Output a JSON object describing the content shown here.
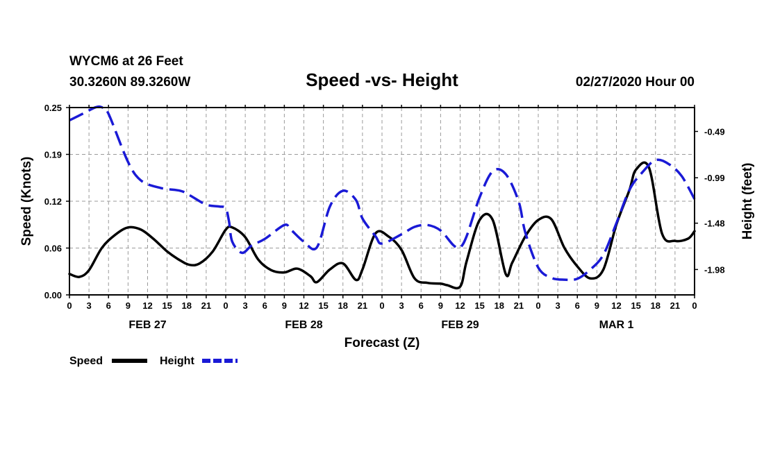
{
  "header": {
    "station": "WYCM6 at 26 Feet",
    "coords": "30.3260N 89.3260W",
    "run_time": "02/27/2020 Hour 00"
  },
  "chart_data": {
    "type": "line",
    "title": "Speed -vs- Height",
    "xlabel": "Forecast (Z)",
    "ylabel": "Speed (Knots)",
    "y2label": "Height (feet)",
    "ylim": [
      0,
      0.25
    ],
    "y2lim": [
      -2.254,
      -0.232
    ],
    "y_ticks": [
      "0.00",
      "0.06",
      "0.12",
      "0.19",
      "0.25"
    ],
    "y_tick_values": [
      0,
      0.0625,
      0.125,
      0.1875,
      0.25
    ],
    "y2_ticks": [
      "-0.49",
      "-0.99",
      "-1.48",
      "-1.98"
    ],
    "y2_tick_values": [
      -0.49,
      -0.99,
      -1.48,
      -1.98
    ],
    "xlim": [
      0,
      96
    ],
    "x_ticks": [
      "0",
      "3",
      "6",
      "9",
      "12",
      "15",
      "18",
      "21",
      "0",
      "3",
      "6",
      "9",
      "12",
      "15",
      "18",
      "21",
      "0",
      "3",
      "6",
      "9",
      "12",
      "15",
      "18",
      "21",
      "0",
      "3",
      "6",
      "9",
      "12",
      "15",
      "18",
      "21",
      "0"
    ],
    "day_labels": [
      {
        "label": "FEB 27",
        "hour": 12
      },
      {
        "label": "FEB 28",
        "hour": 36
      },
      {
        "label": "FEB 29",
        "hour": 60
      },
      {
        "label": "MAR 1",
        "hour": 84
      }
    ],
    "grid": true,
    "series": [
      {
        "name": "Speed",
        "axis": "left",
        "color": "#000000",
        "style": "solid",
        "x": [
          0,
          1.5,
          3,
          5,
          7,
          9,
          11,
          13,
          15,
          17,
          18.5,
          20,
          22,
          24,
          25,
          27,
          29,
          31,
          33,
          35,
          37,
          38,
          40,
          42,
          44,
          45,
          47,
          49,
          51,
          53,
          55,
          57,
          58,
          60,
          61,
          63,
          65,
          67,
          68,
          70,
          72,
          74,
          76,
          78,
          80,
          82,
          84,
          86,
          87,
          89,
          91,
          93,
          95,
          96
        ],
        "values": [
          0.028,
          0.024,
          0.033,
          0.063,
          0.08,
          0.09,
          0.087,
          0.074,
          0.058,
          0.046,
          0.04,
          0.042,
          0.058,
          0.087,
          0.09,
          0.077,
          0.047,
          0.033,
          0.03,
          0.035,
          0.025,
          0.017,
          0.034,
          0.042,
          0.02,
          0.034,
          0.082,
          0.078,
          0.06,
          0.022,
          0.016,
          0.015,
          0.013,
          0.011,
          0.045,
          0.1,
          0.1,
          0.028,
          0.043,
          0.078,
          0.1,
          0.101,
          0.063,
          0.038,
          0.022,
          0.034,
          0.094,
          0.14,
          0.167,
          0.17,
          0.082,
          0.072,
          0.075,
          0.085
        ]
      },
      {
        "name": "Height",
        "axis": "right",
        "color": "#1a1ad6",
        "style": "dashed",
        "x": [
          0,
          2,
          4,
          5,
          6,
          9,
          11,
          14,
          17,
          18.5,
          21,
          23,
          24,
          24.5,
          25,
          26.5,
          28,
          30,
          33,
          34,
          36,
          38,
          40,
          42,
          44,
          45,
          47,
          48,
          51,
          53,
          55,
          57,
          59,
          60,
          61,
          63,
          65,
          67,
          69,
          70,
          72,
          74,
          76,
          78,
          80,
          82,
          84,
          86,
          88,
          90,
          92,
          94,
          96
        ],
        "values": [
          -0.37,
          -0.3,
          -0.23,
          -0.23,
          -0.3,
          -0.82,
          -1.02,
          -1.1,
          -1.13,
          -1.18,
          -1.28,
          -1.3,
          -1.32,
          -1.46,
          -1.68,
          -1.8,
          -1.72,
          -1.65,
          -1.5,
          -1.55,
          -1.68,
          -1.74,
          -1.3,
          -1.13,
          -1.23,
          -1.43,
          -1.62,
          -1.7,
          -1.6,
          -1.52,
          -1.5,
          -1.56,
          -1.72,
          -1.74,
          -1.62,
          -1.2,
          -0.92,
          -0.95,
          -1.25,
          -1.58,
          -1.96,
          -2.07,
          -2.09,
          -2.08,
          -1.98,
          -1.82,
          -1.48,
          -1.12,
          -0.93,
          -0.8,
          -0.84,
          -0.97,
          -1.22
        ]
      }
    ],
    "legend": [
      {
        "label": "Speed",
        "color": "#000000",
        "style": "solid"
      },
      {
        "label": "Height",
        "color": "#1a1ad6",
        "style": "dashed"
      }
    ],
    "legend_position": "bottom-left"
  }
}
